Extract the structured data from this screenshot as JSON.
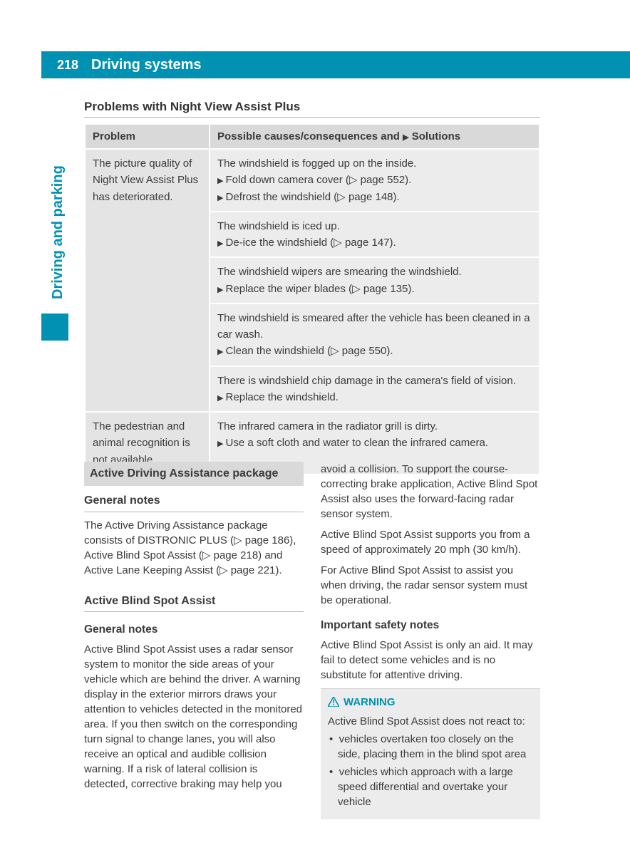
{
  "header": {
    "page_number": "218",
    "title": "Driving systems"
  },
  "side_tab": {
    "label": "Driving and parking"
  },
  "colors": {
    "brand": "#0091b3",
    "table_header_bg": "#d9d9d9",
    "table_cell_bg": "#ececec",
    "text": "#3a3a3a"
  },
  "problems_section": {
    "heading": "Problems with Night View Assist Plus",
    "col_problem": "Problem",
    "col_solutions_prefix": "Possible causes/consequences and ",
    "col_solutions_suffix": " Solutions",
    "rows": [
      {
        "problem": "The picture quality of Night View Assist Plus has deteriorated.",
        "blocks": [
          {
            "cause": "The windshield is fogged up on the inside.",
            "solutions": [
              "Fold down camera cover (▷ page 552).",
              "Defrost the windshield (▷ page 148)."
            ]
          },
          {
            "cause": "The windshield is iced up.",
            "solutions": [
              "De-ice the windshield (▷ page 147)."
            ]
          },
          {
            "cause": "The windshield wipers are smearing the windshield.",
            "solutions": [
              "Replace the wiper blades (▷ page 135)."
            ]
          },
          {
            "cause": "The windshield is smeared after the vehicle has been cleaned in a car wash.",
            "solutions": [
              "Clean the windshield (▷ page 550)."
            ]
          },
          {
            "cause": "There is windshield chip damage in the camera's field of vision.",
            "solutions": [
              "Replace the windshield."
            ]
          }
        ]
      },
      {
        "problem": "The pedestrian and animal recognition is not available.",
        "blocks": [
          {
            "cause": "The infrared camera in the radiator grill is dirty.",
            "solutions": [
              "Use a soft cloth and water to clean the infrared camera."
            ]
          }
        ]
      }
    ]
  },
  "left_column": {
    "band_heading": "Active Driving Assistance package",
    "h1": "General notes",
    "p1": "The Active Driving Assistance package consists of DISTRONIC PLUS (▷ page 186), Active Blind Spot Assist (▷ page 218) and Active Lane Keeping Assist (▷ page 221).",
    "h2": "Active Blind Spot Assist",
    "h3": "General notes",
    "p2": "Active Blind Spot Assist uses a radar sensor system to monitor the side areas of your vehicle which are behind the driver. A warning display in the exterior mirrors draws your attention to vehicles detected in the monitored area. If you then switch on the corresponding turn signal to change lanes, you will also receive an optical and audible collision warning. If a risk of lateral collision is detected, corrective braking may help you"
  },
  "right_column": {
    "p1": "avoid a collision. To support the course-correcting brake application, Active Blind Spot Assist also uses the forward-facing radar sensor system.",
    "p2": "Active Blind Spot Assist supports you from a speed of approximately 20 mph (30 km/h).",
    "p3": "For Active Blind Spot Assist to assist you when driving, the radar sensor system must be operational.",
    "h1": "Important safety notes",
    "p4": "Active Blind Spot Assist is only an aid. It may fail to detect some vehicles and is no substitute for attentive driving.",
    "warning": {
      "label": "WARNING",
      "intro": "Active Blind Spot Assist does not react to:",
      "items": [
        "vehicles overtaken too closely on the side, placing them in the blind spot area",
        "vehicles which approach with a large speed differential and overtake your vehicle"
      ]
    }
  }
}
